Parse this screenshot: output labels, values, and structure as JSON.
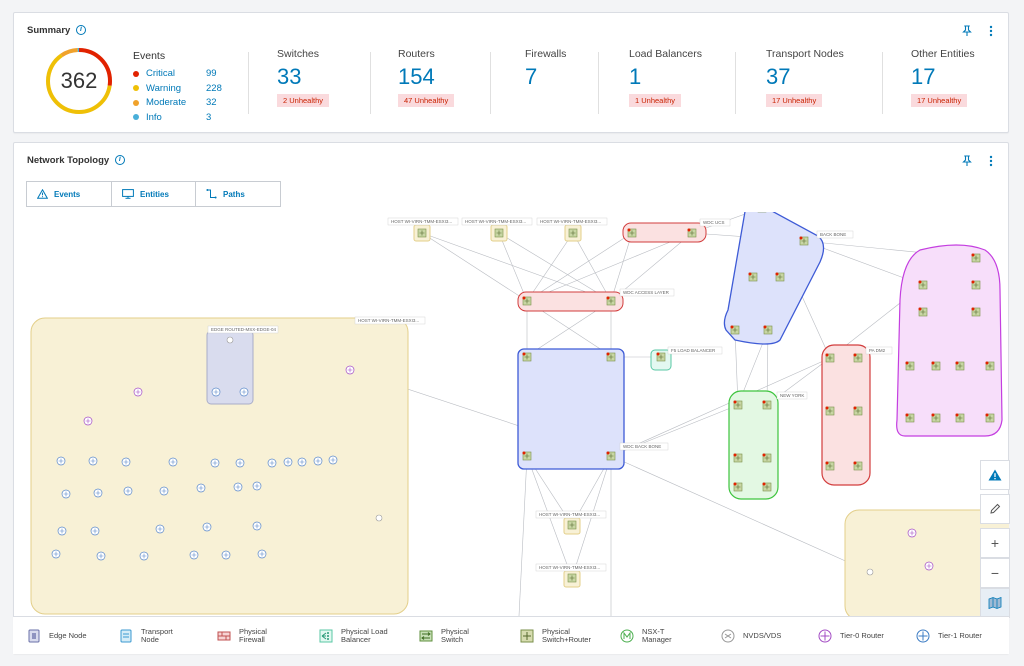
{
  "summary": {
    "title": "Summary",
    "total": "362",
    "events": {
      "title": "Events",
      "items": [
        {
          "label": "Critical",
          "value": "99",
          "color": "#e12200"
        },
        {
          "label": "Warning",
          "value": "228",
          "color": "#efc006"
        },
        {
          "label": "Moderate",
          "value": "32",
          "color": "#f0a22b"
        },
        {
          "label": "Info",
          "value": "3",
          "color": "#49afd9"
        }
      ]
    },
    "stats": [
      {
        "label": "Switches",
        "value": "33",
        "badge": "2 Unhealthy"
      },
      {
        "label": "Routers",
        "value": "154",
        "badge": "47 Unhealthy"
      },
      {
        "label": "Firewalls",
        "value": "7",
        "badge": ""
      },
      {
        "label": "Load Balancers",
        "value": "1",
        "badge": "1 Unhealthy"
      },
      {
        "label": "Transport Nodes",
        "value": "37",
        "badge": "17 Unhealthy"
      },
      {
        "label": "Other Entities",
        "value": "17",
        "badge": "17 Unhealthy"
      }
    ]
  },
  "topology": {
    "title": "Network Topology",
    "tabs": [
      {
        "label": "Events",
        "icon": "warning-icon"
      },
      {
        "label": "Entities",
        "icon": "monitor-icon"
      },
      {
        "label": "Paths",
        "icon": "path-icon"
      }
    ],
    "node_labels": {
      "edge": "EDGE ROUTED-MSX-EDGE-04",
      "host_top": "HOST WI-VIRN-TMM-ESXI3...",
      "host1": "HOST WI-VIRN-TMM-ESXI3...",
      "host2": "HOST WI-VIRN-TMM-ESXI3...",
      "host3": "HOST WI-VIRN-TMM-ESXI3...",
      "wdc_ucs": "WDC UCS",
      "wdc_access": "WDC ACCESS LAYER",
      "back_bone": "BACK BONE",
      "f5": "F5 LOAD BALANCER",
      "wdc_back": "WDC BACK BONE",
      "new_york": "NEW YORK",
      "pa_dm": "PA DM2",
      "host_bottom1": "HOST WI-VIRN-TMM-ESXI3...",
      "host_bottom2": "HOST WI-VIRN-TMM-ESXI3..."
    }
  },
  "legend": [
    {
      "label": "Edge Node",
      "icon": "edge-node-icon"
    },
    {
      "label": "Transport\nNode",
      "icon": "transport-node-icon"
    },
    {
      "label": "Physical\nFirewall",
      "icon": "firewall-icon"
    },
    {
      "label": "Physical Load\nBalancer",
      "icon": "load-balancer-icon"
    },
    {
      "label": "Physical\nSwitch",
      "icon": "switch-icon"
    },
    {
      "label": "Physical\nSwitch+Router",
      "icon": "switch-router-icon"
    },
    {
      "label": "NSX-T\nManager",
      "icon": "nsx-manager-icon"
    },
    {
      "label": "NVDS/VDS",
      "icon": "nvds-icon"
    },
    {
      "label": "Tier-0 Router",
      "icon": "tier0-router-icon"
    },
    {
      "label": "Tier-1 Router",
      "icon": "tier1-router-icon"
    }
  ],
  "colors": {
    "accent": "#0079b8",
    "critical": "#e12200",
    "warning": "#efc006",
    "badge_bg": "#fadadd"
  }
}
